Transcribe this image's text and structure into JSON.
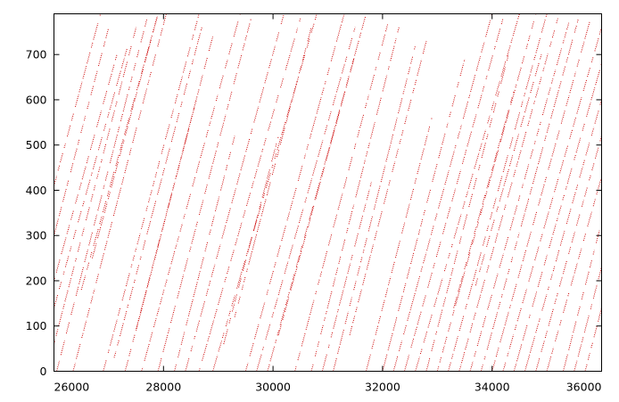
{
  "chart_data": {
    "type": "scatter",
    "title": "",
    "xlabel": "",
    "ylabel": "",
    "xlim": [
      26000,
      36000
    ],
    "ylim": [
      0,
      790
    ],
    "grid": false,
    "legend": "none",
    "x_ticks": [
      26000,
      28000,
      30000,
      32000,
      34000,
      36000
    ],
    "x_tick_labels": [
      "26000",
      "28000",
      "30000",
      "32000",
      "34000",
      "36000"
    ],
    "y_ticks": [
      0,
      100,
      200,
      300,
      400,
      500,
      600,
      700
    ],
    "y_tick_labels": [
      "0",
      "100",
      "200",
      "300",
      "400",
      "500",
      "600",
      "700"
    ],
    "marker_color": "#cc0000",
    "series_description_note_free": true,
    "series": [
      {
        "values_are": "short diagonal dotted trails; each trail is [x_start, y_start, x_end, y_end] in data units",
        "trails": [
          [
            26000,
            410,
            26850,
            790
          ],
          [
            26000,
            300,
            27000,
            760
          ],
          [
            26000,
            200,
            27150,
            700
          ],
          [
            26000,
            140,
            27350,
            720
          ],
          [
            26000,
            60,
            27500,
            760
          ],
          [
            26050,
            0,
            27700,
            780
          ],
          [
            26350,
            0,
            28050,
            790
          ],
          [
            26500,
            180,
            27900,
            790
          ],
          [
            26700,
            250,
            27900,
            790
          ],
          [
            26900,
            0,
            28650,
            790
          ],
          [
            27100,
            30,
            28700,
            760
          ],
          [
            27300,
            0,
            28900,
            740
          ],
          [
            27500,
            90,
            28600,
            600
          ],
          [
            27600,
            0,
            29400,
            790
          ],
          [
            27900,
            0,
            29600,
            780
          ],
          [
            28200,
            0,
            29300,
            520
          ],
          [
            28400,
            0,
            30200,
            790
          ],
          [
            28650,
            0,
            30500,
            780
          ],
          [
            28900,
            0,
            30800,
            790
          ],
          [
            29100,
            60,
            30100,
            520
          ],
          [
            29300,
            120,
            30700,
            760
          ],
          [
            29500,
            0,
            31300,
            790
          ],
          [
            29700,
            0,
            31500,
            760
          ],
          [
            29900,
            0,
            31700,
            790
          ],
          [
            30100,
            80,
            31500,
            700
          ],
          [
            30400,
            0,
            32100,
            770
          ],
          [
            30700,
            0,
            32300,
            760
          ],
          [
            30900,
            0,
            31800,
            420
          ],
          [
            31100,
            0,
            32600,
            720
          ],
          [
            31400,
            80,
            32800,
            730
          ],
          [
            31700,
            0,
            32900,
            560
          ],
          [
            32000,
            0,
            33500,
            690
          ],
          [
            32200,
            0,
            34000,
            790
          ],
          [
            32400,
            0,
            34200,
            780
          ],
          [
            32600,
            0,
            34500,
            790
          ],
          [
            32800,
            0,
            34300,
            700
          ],
          [
            33000,
            0,
            34800,
            790
          ],
          [
            33200,
            0,
            35000,
            790
          ],
          [
            33400,
            0,
            35200,
            780
          ],
          [
            33600,
            0,
            35400,
            770
          ],
          [
            33800,
            0,
            35600,
            790
          ],
          [
            34000,
            0,
            35800,
            780
          ],
          [
            34200,
            0,
            36000,
            760
          ],
          [
            34400,
            0,
            36000,
            680
          ],
          [
            34600,
            0,
            36000,
            600
          ],
          [
            34800,
            0,
            36000,
            520
          ],
          [
            35000,
            0,
            36000,
            430
          ],
          [
            35300,
            0,
            36000,
            330
          ],
          [
            35500,
            0,
            36000,
            230
          ],
          [
            35700,
            0,
            36000,
            140
          ],
          [
            33300,
            140,
            34400,
            620
          ],
          [
            33700,
            190,
            34900,
            700
          ]
        ]
      }
    ]
  }
}
